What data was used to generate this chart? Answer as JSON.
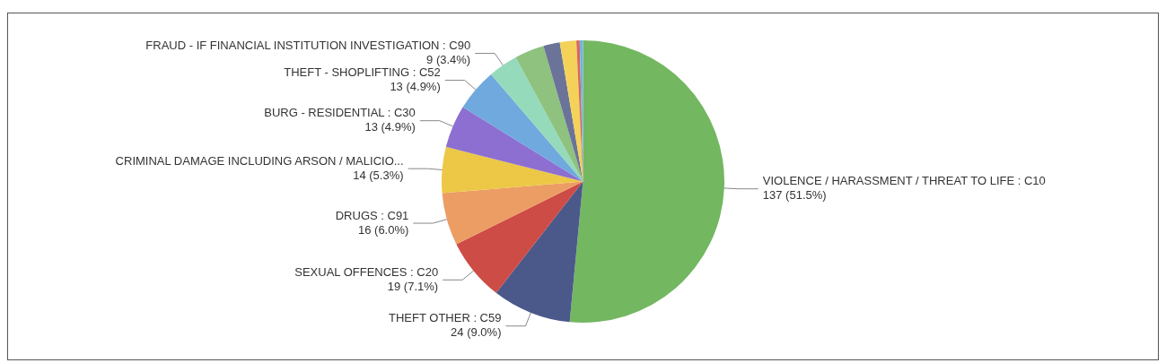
{
  "chart_data": {
    "type": "pie",
    "categories": [
      "VIOLENCE / HARASSMENT / THREAT TO LIFE : C10",
      "THEFT OTHER : C59",
      "SEXUAL OFFENCES : C20",
      "DRUGS : C91",
      "CRIMINAL DAMAGE INCLUDING ARSON / MALICIO...",
      "BURG - RESIDENTIAL : C30",
      "THEFT - SHOPLIFTING : C52",
      "FRAUD - IF FINANCIAL INSTITUTION INVESTIGATION : C90",
      null,
      null,
      null,
      null,
      null
    ],
    "values": [
      137,
      24,
      19,
      16,
      14,
      13,
      13,
      9,
      9,
      5,
      5,
      1,
      1
    ],
    "value_labels": [
      "137 (51.5%)",
      "24 (9.0%)",
      "19 (7.1%)",
      "16 (6.0%)",
      "14 (5.3%)",
      "13 (4.9%)",
      "13 (4.9%)",
      "9 (3.4%)",
      null,
      null,
      null,
      null,
      null
    ],
    "colors": [
      "#73b761",
      "#4a588a",
      "#cd4c46",
      "#ec9d64",
      "#ecc846",
      "#8d6fd1",
      "#6fa9de",
      "#95dabb",
      "#8fc17f",
      "#6b7399",
      "#f4d25a",
      "#d9675c",
      "#71b4e0"
    ],
    "legend": false
  }
}
